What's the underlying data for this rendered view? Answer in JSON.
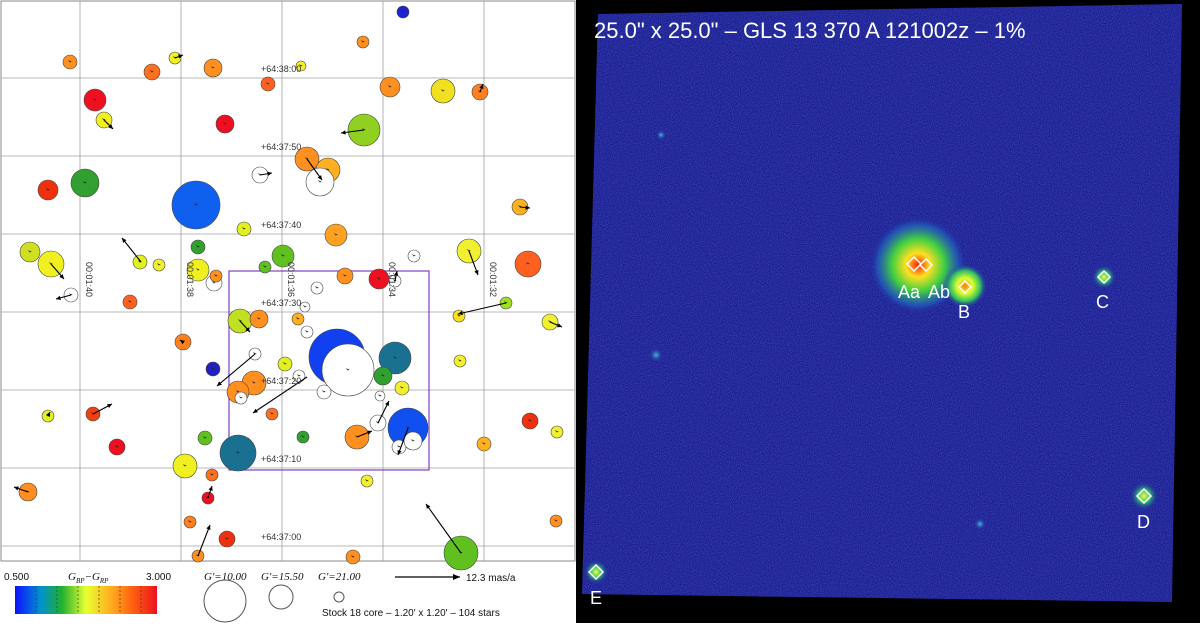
{
  "chart": {
    "grid_dec_labels": [
      "+64:38:00",
      "+64:37:50",
      "+64:37:40",
      "+64:37:30",
      "+64:37:20",
      "+64:37:10",
      "+64:37:00"
    ],
    "grid_ra_labels": [
      "00:01:40",
      "00:01:38",
      "00:01:36",
      "00:01:34",
      "00:01:32"
    ],
    "legend": {
      "color_min": "0.500",
      "color_max": "3.000",
      "color_axis_label": "G",
      "color_axis_sub1": "BP",
      "color_axis_dash": "−G",
      "color_axis_sub2": "RP",
      "mag_labels": [
        "G'=10.00",
        "G'=15.50",
        "G'=21.00"
      ],
      "pm_label": "12.3 mas/a",
      "footer": "Stock 18 core – 1.20' x 1.20' – 104 stars"
    }
  },
  "image": {
    "title": "25.0\" x 25.0\" – GLS 13 370 A 121002z – 1%",
    "labels": [
      "Aa",
      "Ab",
      "B",
      "C",
      "D",
      "E"
    ]
  },
  "colors": {
    "grid": "#9a9a9a",
    "box": "#8040c0",
    "background_blue": "#2a2aa0"
  }
}
